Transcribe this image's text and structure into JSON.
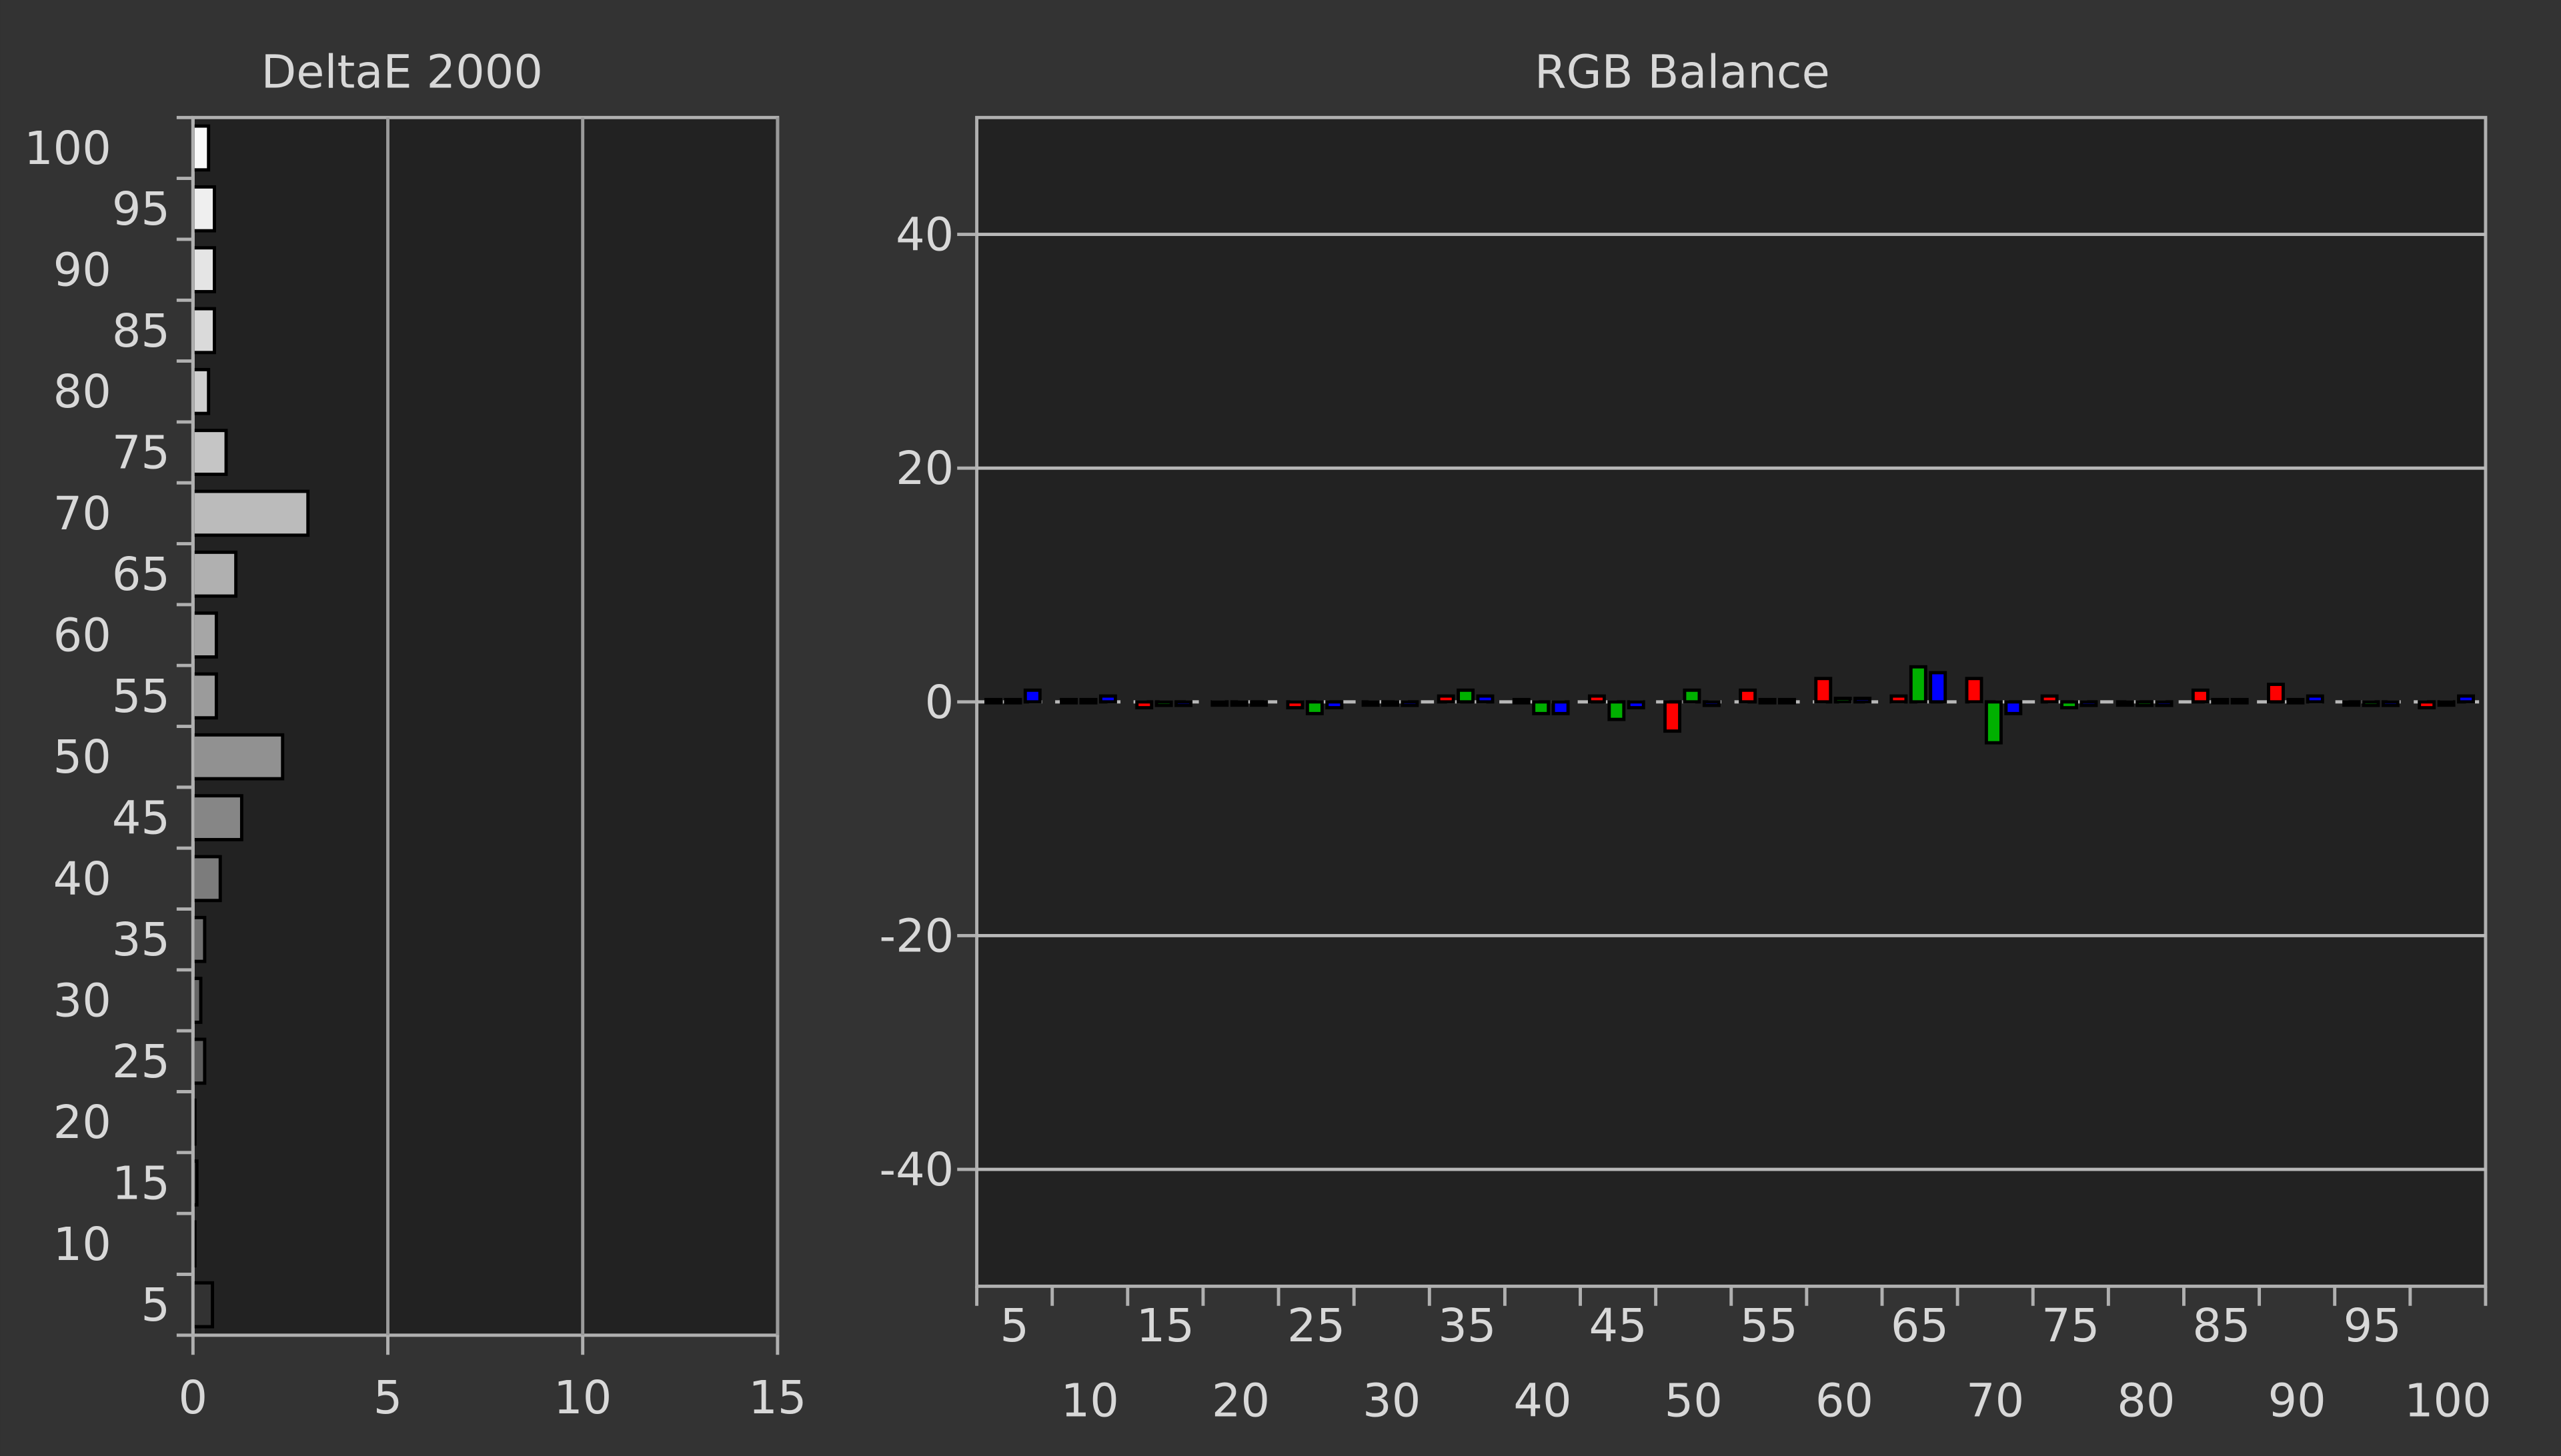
{
  "chart_data": [
    {
      "type": "barh",
      "title": "DeltaE 2000",
      "categories": [
        "5",
        "10",
        "15",
        "20",
        "25",
        "30",
        "35",
        "40",
        "45",
        "50",
        "55",
        "60",
        "65",
        "70",
        "75",
        "80",
        "85",
        "90",
        "95",
        "100"
      ],
      "values": [
        0.5,
        0.05,
        0.1,
        0.05,
        0.3,
        0.2,
        0.3,
        0.7,
        1.25,
        2.3,
        0.6,
        0.6,
        1.1,
        2.95,
        0.85,
        0.4,
        0.55,
        0.55,
        0.55,
        0.4
      ],
      "xlim": [
        0,
        15
      ],
      "xticks": [
        0,
        5,
        10,
        15
      ],
      "grid": true
    },
    {
      "type": "bar",
      "title": "RGB Balance",
      "categories": [
        "5",
        "10",
        "15",
        "20",
        "25",
        "30",
        "35",
        "40",
        "45",
        "50",
        "55",
        "60",
        "65",
        "70",
        "75",
        "80",
        "85",
        "90",
        "95",
        "100"
      ],
      "series": [
        {
          "name": "Red",
          "color": "#ff0000",
          "values": [
            0.2,
            0.2,
            -0.5,
            -0.2,
            -0.5,
            -0.2,
            0.5,
            0.2,
            0.5,
            -2.5,
            1,
            2,
            0.5,
            2,
            0.5,
            -0.2,
            1,
            1.5,
            -0.2,
            -0.5
          ]
        },
        {
          "name": "Green",
          "color": "#00b000",
          "values": [
            0.2,
            0.2,
            -0.3,
            -0.2,
            -1,
            -0.2,
            1,
            -1,
            -1.5,
            1,
            0.2,
            0.3,
            3,
            -3.5,
            -0.5,
            -0.3,
            0.2,
            0.2,
            -0.3,
            -0.2
          ]
        },
        {
          "name": "Blue",
          "color": "#0000ff",
          "values": [
            1,
            0.5,
            -0.3,
            -0.2,
            -0.5,
            -0.3,
            0.5,
            -1,
            -0.5,
            -0.3,
            0.2,
            0.3,
            2.5,
            -1,
            -0.3,
            -0.3,
            0.2,
            0.5,
            -0.3,
            0.5
          ]
        }
      ],
      "ylim": [
        -50,
        50
      ],
      "yticks": [
        -40,
        -20,
        0,
        20,
        40
      ],
      "grid": true
    }
  ]
}
